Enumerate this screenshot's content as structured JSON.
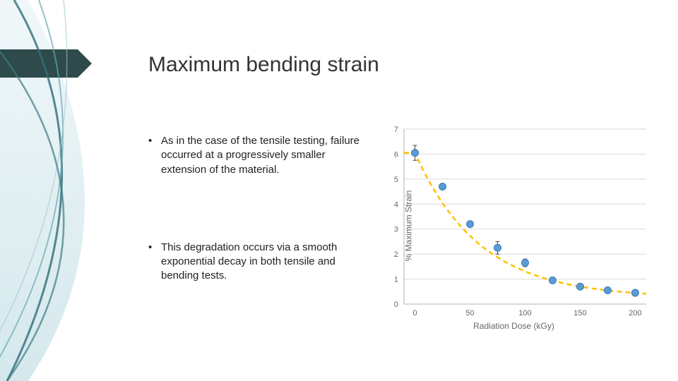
{
  "title": "Maximum bending strain",
  "bullets": [
    "As in the case of the tensile testing, failure occurred at a progressively smaller extension of the material.",
    "This degradation occurs via a smooth exponential decay in both tensile and bending tests."
  ],
  "chart": {
    "type": "scatter",
    "ylabel": "% Maximum Strain",
    "xlabel": "Radiation Dose (kGy)",
    "xlim": [
      -10,
      210
    ],
    "ylim": [
      0,
      7
    ],
    "xtick_step": 50,
    "ytick_step": 1,
    "background_color": "#ffffff",
    "grid_color": "#d9d9d9",
    "axis_color": "#b0b0b0",
    "tick_font_color": "#666666",
    "tick_fontsize": 11,
    "label_fontsize": 12,
    "marker_color": "#5b9bd5",
    "marker_border": "#3a7ab5",
    "marker_radius": 5,
    "errorbar_color": "#444444",
    "curve_color": "#ffc000",
    "curve_width": 2.5,
    "curve_dash": "7 5",
    "points": [
      {
        "x": 0,
        "y": 6.05,
        "err": 0.3
      },
      {
        "x": 25,
        "y": 4.7,
        "err": 0.05
      },
      {
        "x": 50,
        "y": 3.2,
        "err": 0.05
      },
      {
        "x": 75,
        "y": 2.25,
        "err": 0.25
      },
      {
        "x": 100,
        "y": 1.65,
        "err": 0.15
      },
      {
        "x": 125,
        "y": 0.95,
        "err": 0.05
      },
      {
        "x": 150,
        "y": 0.7,
        "err": 0.05
      },
      {
        "x": 175,
        "y": 0.55,
        "err": 0.05
      },
      {
        "x": 200,
        "y": 0.45,
        "err": 0.05
      }
    ],
    "fit": {
      "A": 5.8,
      "k": 0.017,
      "c": 0.25
    }
  }
}
